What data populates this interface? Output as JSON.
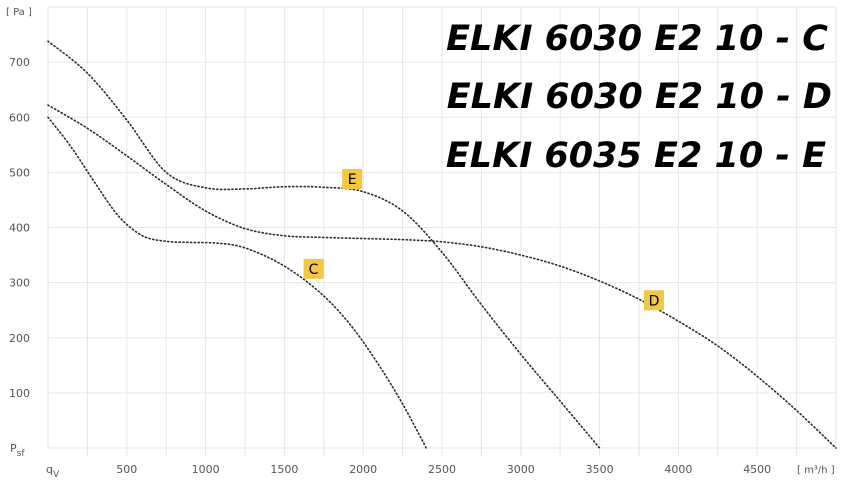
{
  "chart_data": {
    "type": "line",
    "titles": [
      "ELKI 6030 E2 10 - C",
      "ELKI 6030 E2 10 - D",
      "ELKI 6035 E2 10 - E"
    ],
    "y_unit": "[ Pa ]",
    "x_unit": "[ m³/h ]",
    "y_axis_symbol": "Psf",
    "x_axis_symbol": "qV",
    "xlim": [
      0,
      5000
    ],
    "ylim": [
      0,
      800
    ],
    "x_ticks": [
      "500",
      "1000",
      "1500",
      "2000",
      "2500",
      "3000",
      "3500",
      "4000",
      "4500"
    ],
    "y_ticks": [
      "100",
      "200",
      "300",
      "400",
      "500",
      "600",
      "700"
    ],
    "grid": true,
    "series": [
      {
        "name": "C",
        "label_at": [
          1685,
          325
        ],
        "x": [
          0,
          150,
          300,
          450,
          600,
          750,
          900,
          1050,
          1200,
          1350,
          1500,
          1650,
          1800,
          1950,
          2100,
          2250,
          2400
        ],
        "y": [
          600,
          545,
          480,
          420,
          385,
          375,
          373,
          372,
          367,
          352,
          330,
          300,
          262,
          212,
          150,
          80,
          0
        ]
      },
      {
        "name": "D",
        "label_at": [
          3845,
          268
        ],
        "x": [
          0,
          250,
          500,
          750,
          1000,
          1250,
          1500,
          1750,
          2000,
          2250,
          2500,
          2750,
          3000,
          3250,
          3500,
          3750,
          4000,
          4250,
          4500,
          4750,
          5000
        ],
        "y": [
          622,
          580,
          530,
          478,
          430,
          398,
          385,
          382,
          380,
          378,
          374,
          365,
          350,
          330,
          303,
          270,
          230,
          185,
          130,
          68,
          0
        ]
      },
      {
        "name": "E",
        "label_at": [
          1930,
          488
        ],
        "x": [
          0,
          250,
          500,
          750,
          1000,
          1250,
          1500,
          1750,
          2000,
          2250,
          2500,
          2750,
          3000,
          3250,
          3500
        ],
        "y": [
          738,
          680,
          595,
          500,
          472,
          470,
          474,
          473,
          465,
          430,
          355,
          260,
          170,
          85,
          0
        ]
      }
    ],
    "marker_color": "#f2c843"
  }
}
